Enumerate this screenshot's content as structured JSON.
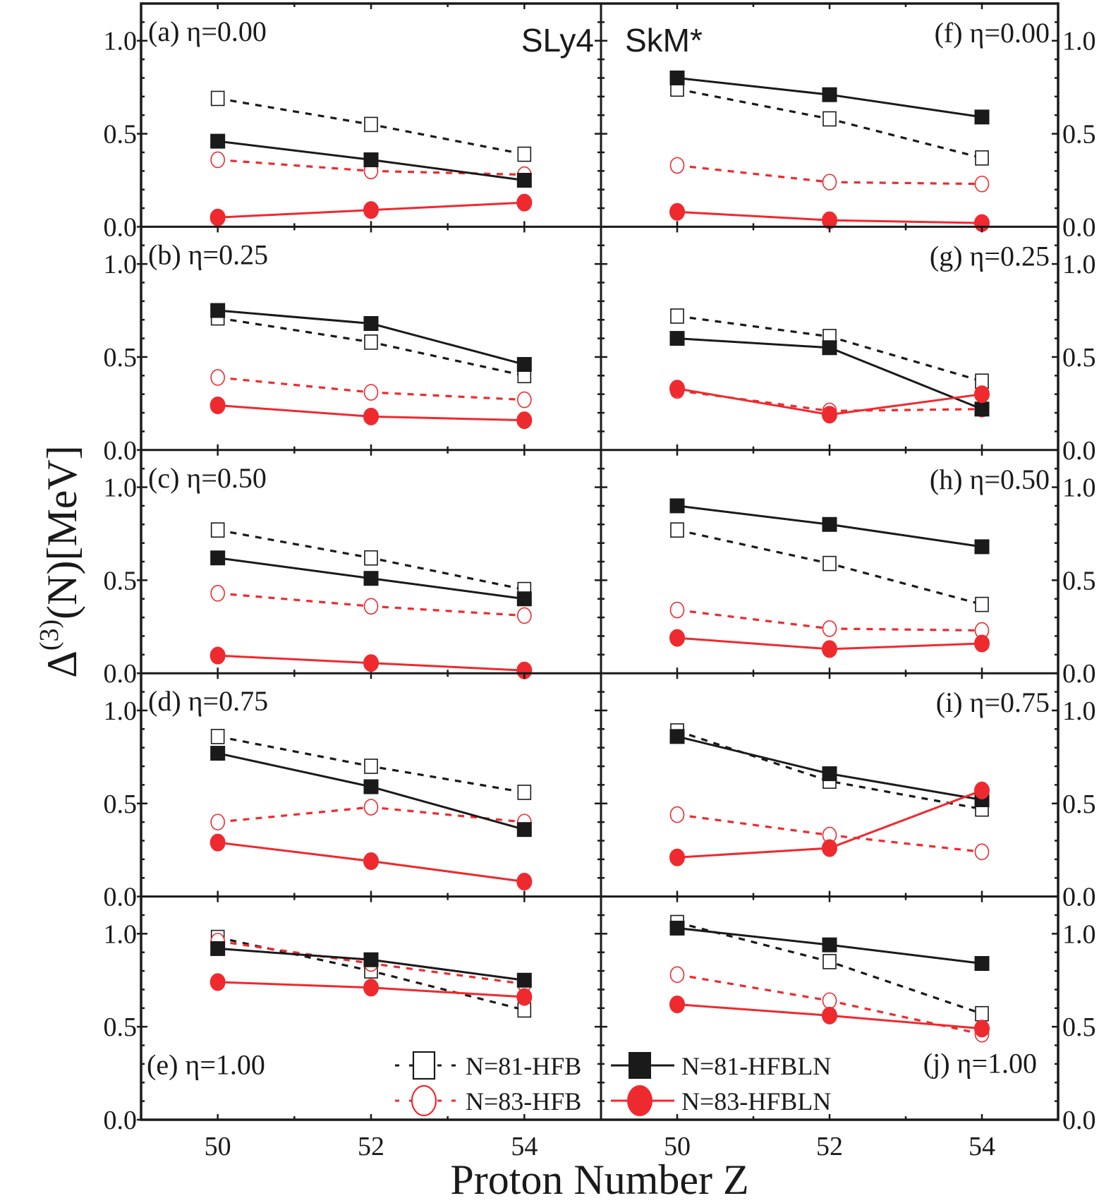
{
  "chart_data": {
    "type": "line",
    "xlabel": "Proton Number Z",
    "ylabel_main": "Δ",
    "ylabel_sup": "(3)",
    "ylabel_rest": "(N)[MeV]",
    "xlim": [
      49,
      55
    ],
    "ylim": [
      0,
      1.2
    ],
    "x": [
      50,
      52,
      54
    ],
    "x_tick_labels": [
      "50",
      "52",
      "54"
    ],
    "y_ticks": [
      0.0,
      0.5,
      1.0
    ],
    "y_tick_labels": [
      "0.0",
      "0.5",
      "1.0"
    ],
    "y_minor_step": 0.1,
    "grid": false,
    "colors": {
      "black": "#1a1a1a",
      "red": "#ee2a2f"
    },
    "series_styles": [
      {
        "key": "n81_hfb",
        "name": "N=81-HFB",
        "color": "black",
        "dash": true,
        "marker": "open-square"
      },
      {
        "key": "n83_hfb",
        "name": "N=83-HFB",
        "color": "red",
        "dash": true,
        "marker": "open-circle"
      },
      {
        "key": "n81_hfbln",
        "name": "N=81-HFBLN",
        "color": "black",
        "dash": false,
        "marker": "filled-square"
      },
      {
        "key": "n83_hfbln",
        "name": "N=83-HFBLN",
        "color": "red",
        "dash": false,
        "marker": "filled-circle"
      }
    ],
    "legend": {
      "placement": "bottom-center",
      "entries": [
        "N=81-HFB",
        "N=83-HFB",
        "N=81-HFBLN",
        "N=83-HFBLN"
      ]
    },
    "columns": [
      {
        "model": "SLy4",
        "model_position": "top-right"
      },
      {
        "model": "SkM*",
        "model_position": "top-left"
      }
    ],
    "panels": [
      {
        "id": "a",
        "col": 0,
        "row": 0,
        "label": "(a) η=0.00",
        "label_position": "top-left",
        "series": {
          "n81_hfb": [
            0.69,
            0.55,
            0.39
          ],
          "n81_hfbln": [
            0.46,
            0.36,
            0.25
          ],
          "n83_hfb": [
            0.36,
            0.3,
            0.28
          ],
          "n83_hfbln": [
            0.05,
            0.09,
            0.13
          ]
        }
      },
      {
        "id": "b",
        "col": 0,
        "row": 1,
        "label": "(b) η=0.25",
        "label_position": "top-left",
        "series": {
          "n81_hfb": [
            0.71,
            0.58,
            0.4
          ],
          "n81_hfbln": [
            0.75,
            0.68,
            0.46
          ],
          "n83_hfb": [
            0.39,
            0.31,
            0.27
          ],
          "n83_hfbln": [
            0.24,
            0.18,
            0.16
          ]
        }
      },
      {
        "id": "c",
        "col": 0,
        "row": 2,
        "label": "(c) η=0.50",
        "label_position": "top-left",
        "series": {
          "n81_hfb": [
            0.77,
            0.62,
            0.45
          ],
          "n81_hfbln": [
            0.62,
            0.51,
            0.4
          ],
          "n83_hfb": [
            0.43,
            0.36,
            0.31
          ],
          "n83_hfbln": [
            0.095,
            0.055,
            0.015
          ]
        }
      },
      {
        "id": "d",
        "col": 0,
        "row": 3,
        "label": "(d) η=0.75",
        "label_position": "top-left",
        "series": {
          "n81_hfb": [
            0.86,
            0.7,
            0.56
          ],
          "n81_hfbln": [
            0.77,
            0.59,
            0.36
          ],
          "n83_hfb": [
            0.4,
            0.48,
            0.4
          ],
          "n83_hfbln": [
            0.29,
            0.19,
            0.08
          ]
        }
      },
      {
        "id": "e",
        "col": 0,
        "row": 4,
        "label": "(e) η=1.00",
        "label_position": "bottom-left",
        "series": {
          "n81_hfb": [
            0.98,
            0.8,
            0.59
          ],
          "n81_hfbln": [
            0.92,
            0.86,
            0.75
          ],
          "n83_hfb": [
            0.96,
            0.84,
            0.73
          ],
          "n83_hfbln": [
            0.74,
            0.71,
            0.66
          ]
        }
      },
      {
        "id": "f",
        "col": 1,
        "row": 0,
        "label": "(f) η=0.00",
        "label_position": "top-right",
        "series": {
          "n81_hfb": [
            0.74,
            0.58,
            0.37
          ],
          "n81_hfbln": [
            0.8,
            0.71,
            0.59
          ],
          "n83_hfb": [
            0.33,
            0.24,
            0.23
          ],
          "n83_hfbln": [
            0.08,
            0.035,
            0.02
          ]
        }
      },
      {
        "id": "g",
        "col": 1,
        "row": 1,
        "label": "(g) η=0.25",
        "label_position": "top-right",
        "series": {
          "n81_hfb": [
            0.72,
            0.61,
            0.37
          ],
          "n81_hfbln": [
            0.6,
            0.55,
            0.22
          ],
          "n83_hfb": [
            0.32,
            0.21,
            0.22
          ],
          "n83_hfbln": [
            0.33,
            0.19,
            0.3
          ]
        }
      },
      {
        "id": "h",
        "col": 1,
        "row": 2,
        "label": "(h) η=0.50",
        "label_position": "top-right",
        "series": {
          "n81_hfb": [
            0.77,
            0.59,
            0.37
          ],
          "n81_hfbln": [
            0.9,
            0.8,
            0.68
          ],
          "n83_hfb": [
            0.34,
            0.24,
            0.23
          ],
          "n83_hfbln": [
            0.19,
            0.13,
            0.16
          ]
        }
      },
      {
        "id": "i",
        "col": 1,
        "row": 3,
        "label": "(i) η=0.75",
        "label_position": "top-right",
        "series": {
          "n81_hfb": [
            0.89,
            0.62,
            0.47
          ],
          "n81_hfbln": [
            0.86,
            0.66,
            0.52
          ],
          "n83_hfb": [
            0.44,
            0.33,
            0.24
          ],
          "n83_hfbln": [
            0.21,
            0.26,
            0.57
          ]
        }
      },
      {
        "id": "j",
        "col": 1,
        "row": 4,
        "label": "(j) η=1.00",
        "label_position": "bottom-right",
        "series": {
          "n81_hfb": [
            1.06,
            0.85,
            0.57
          ],
          "n81_hfbln": [
            1.03,
            0.94,
            0.84
          ],
          "n83_hfb": [
            0.78,
            0.64,
            0.46
          ],
          "n83_hfbln": [
            0.62,
            0.56,
            0.49
          ]
        }
      }
    ]
  }
}
